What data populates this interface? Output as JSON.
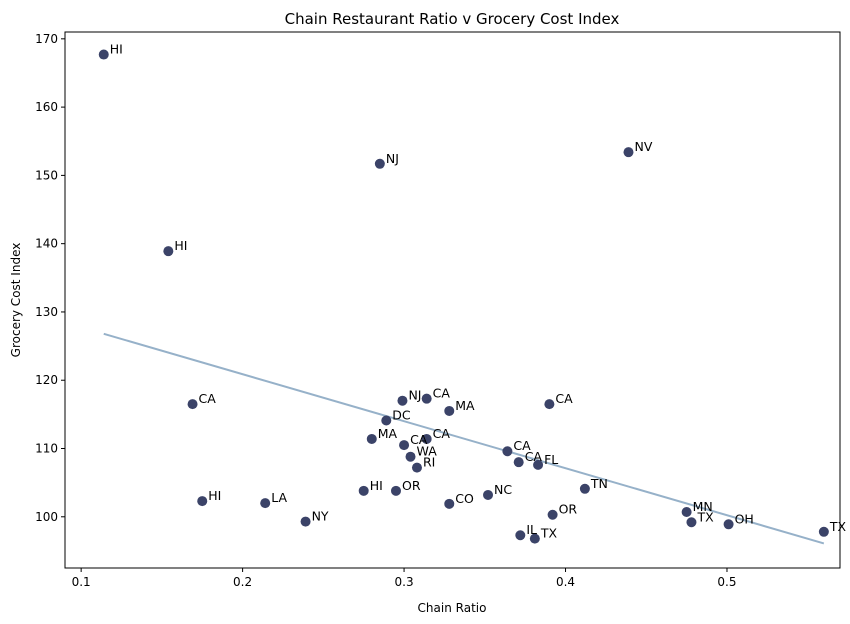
{
  "chart_data": {
    "type": "scatter",
    "title": "Chain Restaurant Ratio v Grocery Cost Index",
    "xlabel": "Chain Ratio",
    "ylabel": "Grocery Cost Index",
    "xlim": [
      0.09,
      0.57
    ],
    "ylim": [
      92.5,
      171
    ],
    "xticks": [
      0.1,
      0.2,
      0.3,
      0.4,
      0.5
    ],
    "xtick_labels": [
      "0.1",
      "0.2",
      "0.3",
      "0.4",
      "0.5"
    ],
    "yticks": [
      100,
      110,
      120,
      130,
      140,
      150,
      160,
      170
    ],
    "ytick_labels": [
      "100",
      "110",
      "120",
      "130",
      "140",
      "150",
      "160",
      "170"
    ],
    "grid": false,
    "point_color": "#3b4368",
    "trend_color": "#96b1c9",
    "trendline": {
      "x": [
        0.114,
        0.56
      ],
      "y": [
        126.8,
        96.1
      ]
    },
    "points": [
      {
        "label": "HI",
        "x": 0.114,
        "y": 167.7
      },
      {
        "label": "HI",
        "x": 0.154,
        "y": 138.9
      },
      {
        "label": "NJ",
        "x": 0.285,
        "y": 151.7
      },
      {
        "label": "NV",
        "x": 0.439,
        "y": 153.4
      },
      {
        "label": "CA",
        "x": 0.169,
        "y": 116.5
      },
      {
        "label": "NJ",
        "x": 0.299,
        "y": 117.0
      },
      {
        "label": "CA",
        "x": 0.314,
        "y": 117.3
      },
      {
        "label": "MA",
        "x": 0.328,
        "y": 115.5
      },
      {
        "label": "CA",
        "x": 0.39,
        "y": 116.5
      },
      {
        "label": "DC",
        "x": 0.289,
        "y": 114.1
      },
      {
        "label": "MA",
        "x": 0.28,
        "y": 111.4
      },
      {
        "label": "CA",
        "x": 0.3,
        "y": 110.5
      },
      {
        "label": "CA",
        "x": 0.314,
        "y": 111.4
      },
      {
        "label": "WA",
        "x": 0.304,
        "y": 108.8
      },
      {
        "label": "RI",
        "x": 0.308,
        "y": 107.2
      },
      {
        "label": "CA",
        "x": 0.364,
        "y": 109.6
      },
      {
        "label": "CA",
        "x": 0.371,
        "y": 108.0
      },
      {
        "label": "FL",
        "x": 0.383,
        "y": 107.6
      },
      {
        "label": "TN",
        "x": 0.412,
        "y": 104.1
      },
      {
        "label": "HI",
        "x": 0.175,
        "y": 102.3
      },
      {
        "label": "LA",
        "x": 0.214,
        "y": 102.0
      },
      {
        "label": "NY",
        "x": 0.239,
        "y": 99.3
      },
      {
        "label": "HI",
        "x": 0.275,
        "y": 103.8
      },
      {
        "label": "OR",
        "x": 0.295,
        "y": 103.8
      },
      {
        "label": "CO",
        "x": 0.328,
        "y": 101.9
      },
      {
        "label": "NC",
        "x": 0.352,
        "y": 103.2
      },
      {
        "label": "OR",
        "x": 0.392,
        "y": 100.3
      },
      {
        "label": "IL",
        "x": 0.372,
        "y": 97.3
      },
      {
        "label": "TX",
        "x": 0.381,
        "y": 96.8
      },
      {
        "label": "MN",
        "x": 0.475,
        "y": 100.7
      },
      {
        "label": "TX",
        "x": 0.478,
        "y": 99.2
      },
      {
        "label": "OH",
        "x": 0.501,
        "y": 98.9
      },
      {
        "label": "TX",
        "x": 0.56,
        "y": 97.8
      }
    ]
  }
}
